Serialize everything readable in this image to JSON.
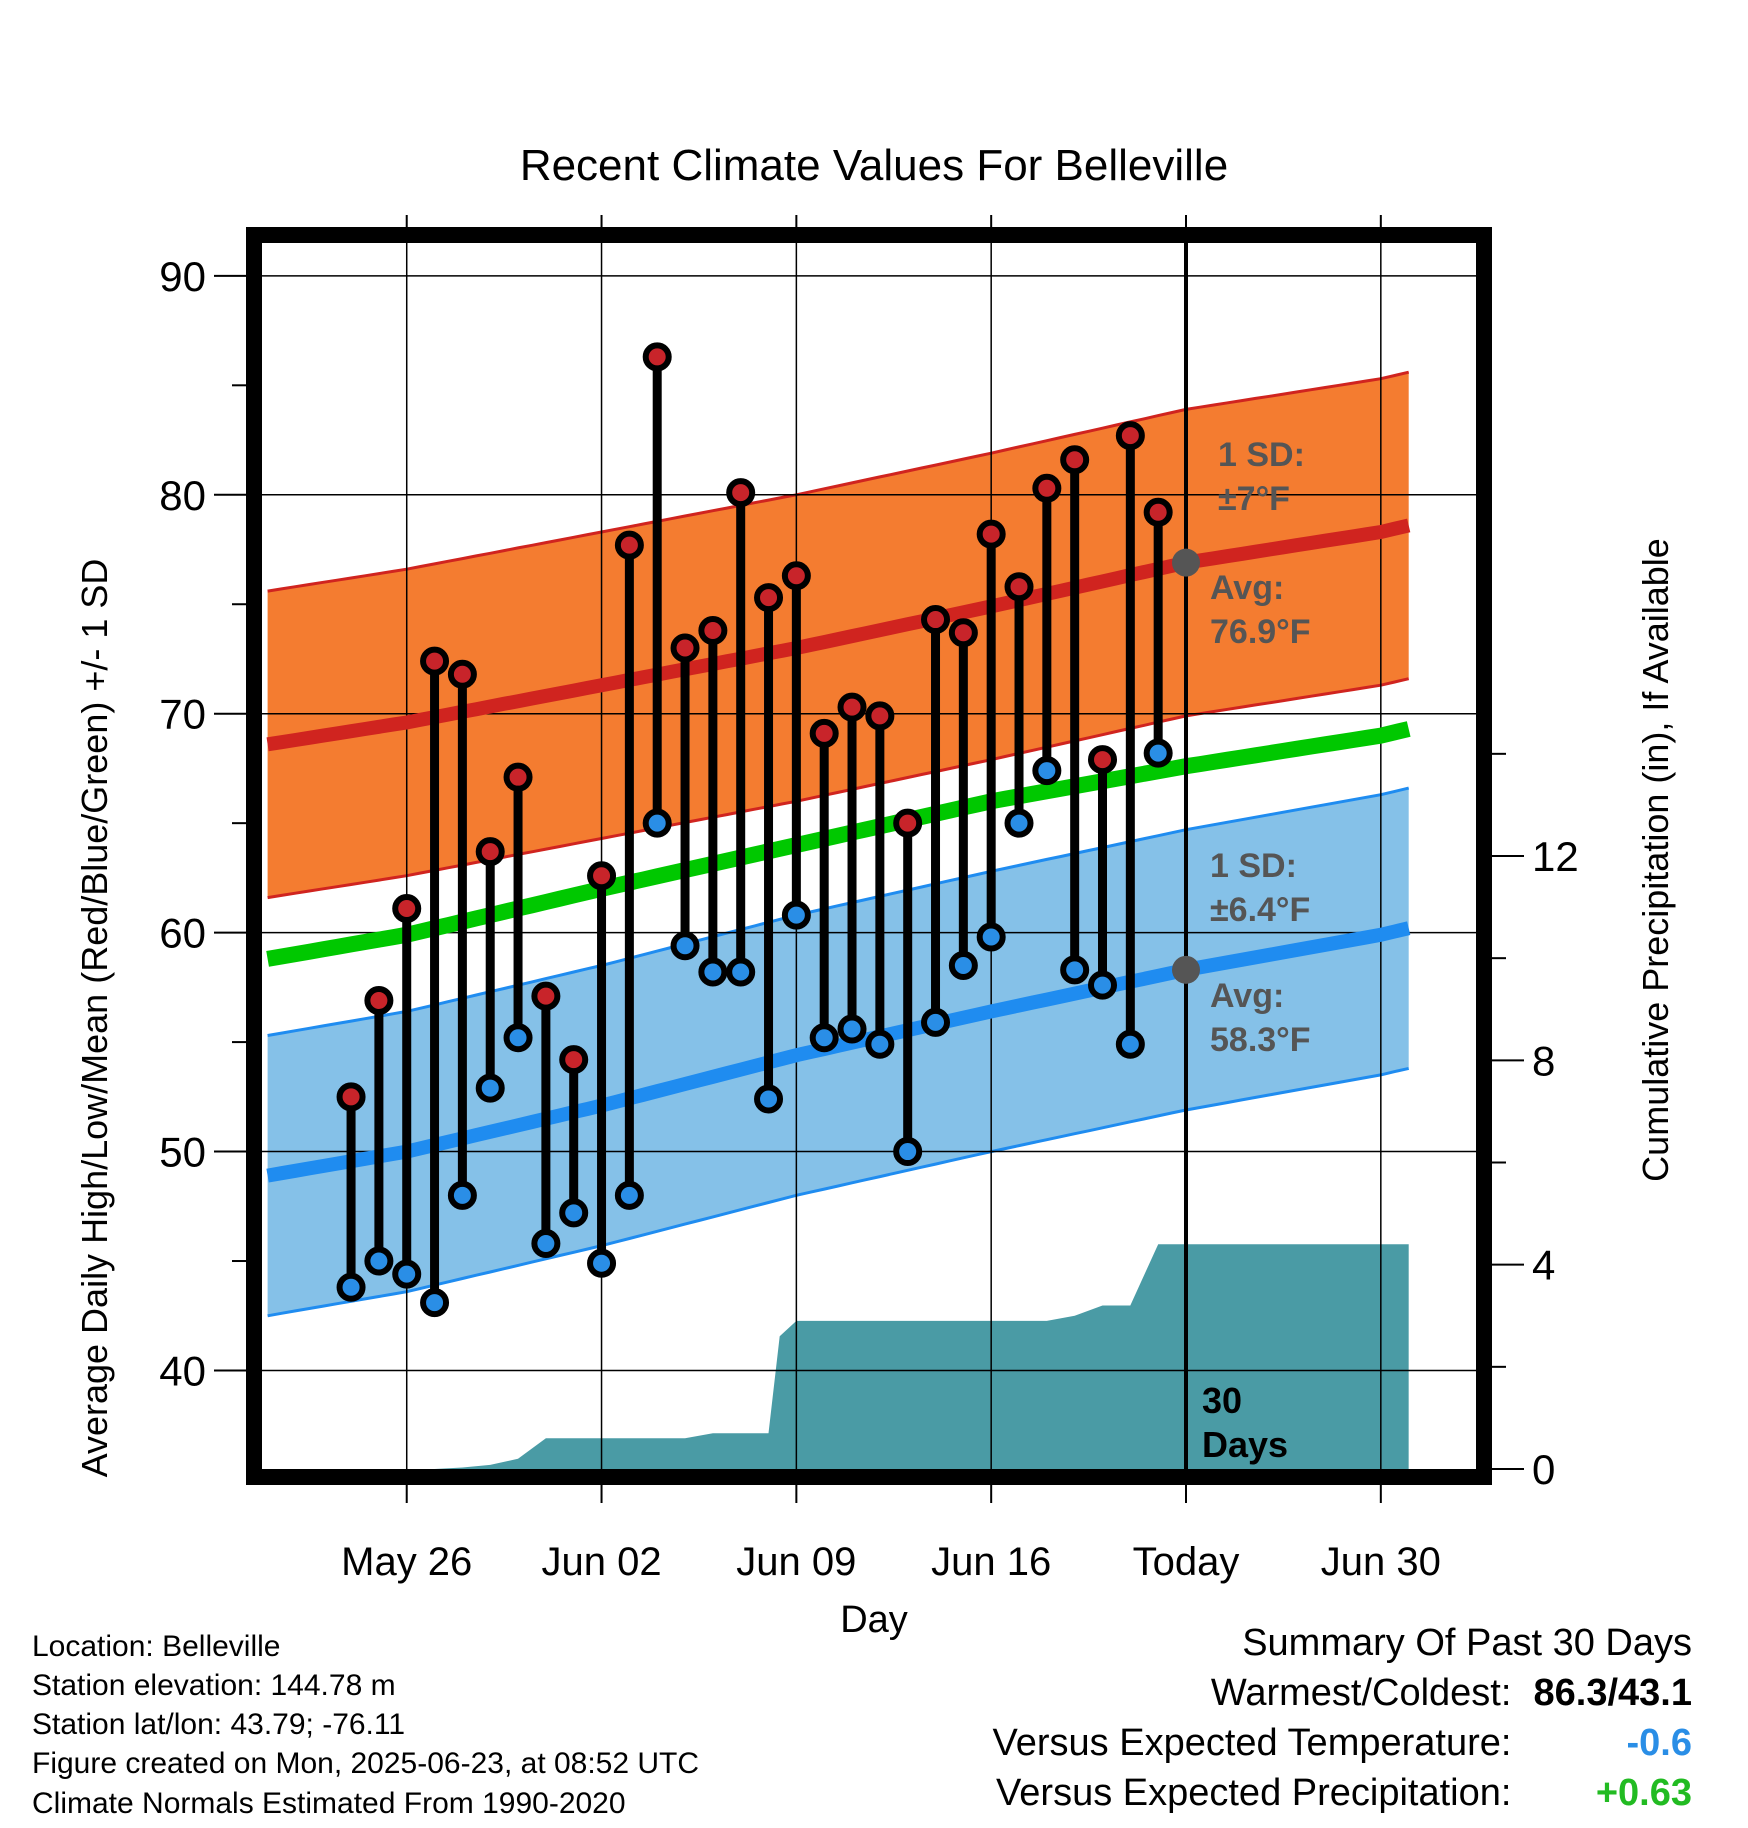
{
  "chart_data": {
    "type": "line",
    "title": "Recent Climate Values For Belleville",
    "xlabel": "Day",
    "ylabel": "Average Daily High/Low/Mean (Red/Blue/Green) +/- 1 SD",
    "ylabel_right": "Cumulative Precipitation (in), If Available",
    "ylim": [
      35.5,
      91.5
    ],
    "ylim_right": [
      0,
      24
    ],
    "yticks": [
      "40",
      "50",
      "60",
      "70",
      "80",
      "90"
    ],
    "yticks_right": [
      "0",
      "4",
      "8",
      "12"
    ],
    "x_range_days": [
      -33.2,
      8.3
    ],
    "x_ticks": [
      {
        "day": -28,
        "label": "May 26"
      },
      {
        "day": -21,
        "label": "Jun 02"
      },
      {
        "day": -14,
        "label": "Jun 09"
      },
      {
        "day": -7,
        "label": "Jun 16"
      },
      {
        "day": 0,
        "label": "Today"
      },
      {
        "day": 7,
        "label": "Jun 30"
      }
    ],
    "today_day": 0,
    "today_label_line1": "30",
    "today_label_line2": "Days",
    "normals": {
      "day": [
        -33,
        -28,
        -21,
        -14,
        -7,
        0,
        7,
        8
      ],
      "avg_high": [
        68.6,
        69.6,
        71.3,
        73.0,
        74.9,
        76.9,
        78.3,
        78.6
      ],
      "avg_low": [
        48.9,
        50.0,
        52.1,
        54.4,
        56.4,
        58.3,
        59.9,
        60.2
      ],
      "mean": [
        58.8,
        59.9,
        62.0,
        64.0,
        66.0,
        67.6,
        69.0,
        69.3
      ],
      "high_sd": 7,
      "low_sd": 6.4
    },
    "daily": {
      "day": [
        -30,
        -29,
        -28,
        -27,
        -26,
        -25,
        -24,
        -23,
        -22,
        -21,
        -20,
        -19,
        -18,
        -17,
        -16,
        -15,
        -14,
        -13,
        -12,
        -11,
        -10,
        -9,
        -8,
        -7,
        -6,
        -5,
        -4,
        -3,
        -2,
        -1
      ],
      "high": [
        52.5,
        56.9,
        61.1,
        72.4,
        71.8,
        63.7,
        67.1,
        57.1,
        54.2,
        62.6,
        77.7,
        86.3,
        73.0,
        73.8,
        80.1,
        75.3,
        76.3,
        69.1,
        70.3,
        69.9,
        65.0,
        74.3,
        73.7,
        78.2,
        75.8,
        80.3,
        81.6,
        67.9,
        82.7,
        79.2
      ],
      "low": [
        43.8,
        45.0,
        44.4,
        43.1,
        48.0,
        52.9,
        55.2,
        45.8,
        47.2,
        44.9,
        48.0,
        65.0,
        59.4,
        58.2,
        58.2,
        52.4,
        60.8,
        55.2,
        55.6,
        54.9,
        50.0,
        55.9,
        58.5,
        59.8,
        65.0,
        67.4,
        58.3,
        57.6,
        54.9,
        68.2
      ]
    },
    "precip": {
      "day": [
        -30,
        -29,
        -28,
        -27,
        -26,
        -25,
        -24,
        -23,
        -22,
        -21,
        -20,
        -19,
        -18,
        -17,
        -16,
        -15,
        -14.6,
        -14,
        -13,
        -12,
        -11,
        -10,
        -9,
        -8,
        -7,
        -6,
        -5,
        -4,
        -3,
        -2,
        -1,
        0,
        1,
        8
      ],
      "value": [
        0,
        0,
        0,
        0,
        0.03,
        0.08,
        0.2,
        0.6,
        0.6,
        0.6,
        0.6,
        0.6,
        0.6,
        0.7,
        0.7,
        0.7,
        2.6,
        2.9,
        2.9,
        2.9,
        2.9,
        2.9,
        2.9,
        2.9,
        2.9,
        2.9,
        2.9,
        3.0,
        3.2,
        3.2,
        4.4,
        4.4,
        4.4,
        4.4
      ]
    },
    "annotations": [
      {
        "line1": "1 SD:",
        "line2": "±7°F",
        "color": "#555555"
      },
      {
        "line1": "Avg:",
        "line2": "76.9°F",
        "color": "#555555"
      },
      {
        "line1": "1 SD:",
        "line2": "±6.4°F",
        "color": "#555555"
      },
      {
        "line1": "Avg:",
        "line2": "58.3°F",
        "color": "#555555"
      }
    ],
    "colors": {
      "high_band": "#f47c30",
      "high_line": "#d0241f",
      "low_band": "#85c1e8",
      "low_line": "#1f8cf0",
      "mean_line": "#00c800",
      "precip": "#4a9ba5",
      "high_dot": "#c8242a",
      "low_dot": "#2a8ee6"
    },
    "grid": true,
    "legend": "none"
  },
  "footer": {
    "location": "Location: Belleville",
    "elevation": "Station elevation: 144.78 m",
    "latlon": "Station lat/lon: 43.79; -76.11",
    "created": "Figure created on Mon, 2025-06-23, at 08:52 UTC",
    "normals": "Climate Normals Estimated From 1990-2020"
  },
  "summary": {
    "title": "Summary Of Past 30 Days",
    "warm_label": "Warmest/Coldest:",
    "warm_value": "86.3/43.1",
    "temp_label": "Versus Expected Temperature:",
    "temp_value": "-0.6",
    "temp_color": "#2a8ee6",
    "precip_label": "Versus Expected Precipitation:",
    "precip_value": "+0.63",
    "precip_color": "#22bb22"
  }
}
